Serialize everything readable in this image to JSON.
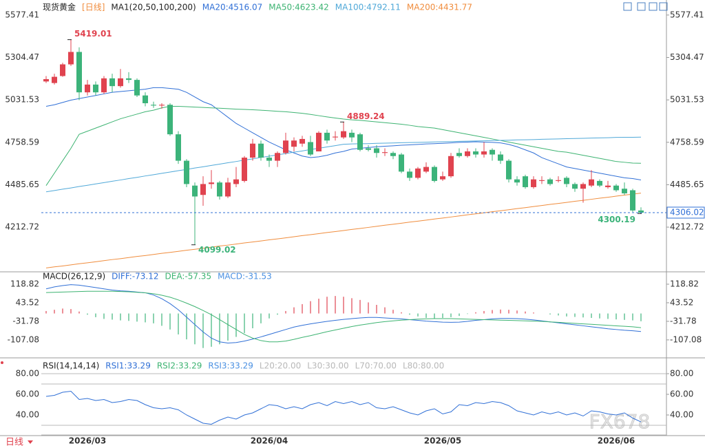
{
  "ui": {
    "period_button": "日线",
    "watermark": "FX678"
  },
  "chart_data": [
    {
      "type": "candlestick",
      "title": "现货黄金",
      "period": "[日线]",
      "period_color": "#f08c3c",
      "indicator": "MA1(20,50,100,200)",
      "up_color": "#e0434f",
      "down_color": "#3cb37a",
      "ylim": [
        3934,
        5652
      ],
      "yticks": [
        5577.41,
        5304.47,
        5031.53,
        4758.59,
        4485.65,
        4212.72
      ],
      "categories": [
        null,
        null,
        null,
        null,
        null,
        "2026/03",
        null,
        null,
        null,
        null,
        null,
        null,
        null,
        null,
        null,
        null,
        null,
        null,
        null,
        null,
        null,
        null,
        null,
        null,
        null,
        null,
        null,
        "2026/04",
        null,
        null,
        null,
        null,
        null,
        null,
        null,
        null,
        null,
        null,
        null,
        null,
        null,
        null,
        null,
        null,
        null,
        null,
        null,
        null,
        "2026/05",
        null,
        null,
        null,
        null,
        null,
        null,
        null,
        null,
        null,
        null,
        null,
        null,
        null,
        null,
        null,
        null,
        null,
        null,
        null,
        null,
        "2026/06",
        null,
        null,
        null
      ],
      "open": [
        5150,
        5140,
        5185,
        5260,
        5340,
        5080,
        5130,
        5080,
        5170,
        5120,
        5170,
        5160,
        5060,
        5000,
        4995,
        5000,
        4810,
        4640,
        4480,
        4420,
        4490,
        4500,
        4410,
        4490,
        4510,
        4660,
        4750,
        4660,
        4640,
        4690,
        4730,
        4750,
        4760,
        4700,
        4820,
        4790,
        4790,
        4820,
        4810,
        4720,
        4720,
        4690,
        4690,
        4680,
        4570,
        4530,
        4570,
        4600,
        4520,
        4540,
        4690,
        4670,
        4700,
        4680,
        4710,
        4680,
        4640,
        4520,
        4540,
        4470,
        4510,
        4520,
        4510,
        4530,
        4490,
        4460,
        4480,
        4510,
        4470,
        4480,
        4460,
        4450,
        4320
      ],
      "close": [
        5165,
        5180,
        5260,
        5340,
        5080,
        5130,
        5080,
        5170,
        5120,
        5170,
        5160,
        5060,
        5010,
        4995,
        5000,
        4810,
        4640,
        4490,
        4410,
        4490,
        4500,
        4410,
        4500,
        4520,
        4660,
        4750,
        4660,
        4640,
        4690,
        4770,
        4770,
        4780,
        4680,
        4820,
        4770,
        4795,
        4830,
        4790,
        4710,
        4710,
        4690,
        4695,
        4670,
        4570,
        4530,
        4590,
        4600,
        4510,
        4540,
        4670,
        4670,
        4700,
        4680,
        4700,
        4680,
        4640,
        4520,
        4500,
        4470,
        4520,
        4515,
        4490,
        4515,
        4490,
        4460,
        4490,
        4520,
        4480,
        4480,
        4450,
        4430,
        4320,
        4306.02
      ],
      "high": [
        5185,
        5200,
        5270,
        5419.01,
        5370,
        5160,
        5150,
        5185,
        5200,
        5230,
        5210,
        5170,
        5080,
        5020,
        5010,
        5010,
        4830,
        4650,
        4500,
        4540,
        4580,
        4510,
        4530,
        4600,
        4670,
        4780,
        4770,
        4680,
        4700,
        4820,
        4790,
        4800,
        4800,
        4830,
        4840,
        4830,
        4889.24,
        4840,
        4820,
        4740,
        4740,
        4720,
        4700,
        4690,
        4590,
        4600,
        4630,
        4610,
        4570,
        4690,
        4720,
        4720,
        4720,
        4760,
        4720,
        4700,
        4650,
        4540,
        4550,
        4540,
        4540,
        4530,
        4540,
        4540,
        4500,
        4500,
        4580,
        4520,
        4510,
        4490,
        4500,
        4460,
        4340
      ],
      "low": [
        5140,
        5130,
        5180,
        5250,
        5030,
        5060,
        5060,
        5070,
        5080,
        5110,
        5140,
        5050,
        4990,
        4980,
        4975,
        4800,
        4620,
        4470,
        4099.02,
        4350,
        4460,
        4390,
        4400,
        4470,
        4500,
        4640,
        4640,
        4600,
        4600,
        4680,
        4700,
        4730,
        4670,
        4700,
        4750,
        4770,
        4780,
        4760,
        4700,
        4700,
        4660,
        4670,
        4650,
        4560,
        4510,
        4520,
        4560,
        4500,
        4510,
        4530,
        4660,
        4660,
        4660,
        4660,
        4640,
        4620,
        4500,
        4480,
        4460,
        4460,
        4490,
        4480,
        4500,
        4470,
        4440,
        4370,
        4470,
        4470,
        4460,
        4440,
        4420,
        4310,
        4300.19
      ],
      "series": [
        {
          "name": "MA20:4516.07",
          "color": "#2f6fd6",
          "values": [
            4990,
            5000,
            5015,
            5030,
            5040,
            5050,
            5060,
            5070,
            5080,
            5085,
            5090,
            5095,
            5100,
            5110,
            5110,
            5105,
            5100,
            5080,
            5050,
            5020,
            5000,
            4960,
            4920,
            4880,
            4850,
            4820,
            4790,
            4760,
            4735,
            4710,
            4690,
            4670,
            4660,
            4665,
            4675,
            4690,
            4700,
            4715,
            4720,
            4725,
            4730,
            4733,
            4736,
            4740,
            4742,
            4745,
            4748,
            4750,
            4752,
            4755,
            4758,
            4760,
            4762,
            4760,
            4758,
            4755,
            4745,
            4730,
            4710,
            4690,
            4660,
            4640,
            4620,
            4600,
            4590,
            4580,
            4570,
            4560,
            4550,
            4540,
            4530,
            4525,
            4516.07
          ]
        },
        {
          "name": "MA50:4623.42",
          "color": "#3cb371",
          "values": [
            4480,
            4560,
            4640,
            4720,
            4810,
            4830,
            4850,
            4870,
            4890,
            4910,
            4925,
            4940,
            4955,
            4965,
            4980,
            4990,
            4990,
            4988,
            4985,
            4983,
            4980,
            4978,
            4975,
            4972,
            4970,
            4968,
            4965,
            4962,
            4958,
            4955,
            4950,
            4945,
            4938,
            4930,
            4922,
            4915,
            4908,
            4903,
            4900,
            4895,
            4890,
            4885,
            4880,
            4875,
            4868,
            4860,
            4855,
            4850,
            4840,
            4830,
            4820,
            4810,
            4800,
            4790,
            4780,
            4770,
            4760,
            4750,
            4740,
            4730,
            4720,
            4710,
            4700,
            4695,
            4685,
            4675,
            4665,
            4655,
            4645,
            4635,
            4630,
            4625,
            4623.42
          ]
        },
        {
          "name": "MA100:4792.11",
          "color": "#4fa8d8",
          "values": [
            4440,
            4448,
            4457,
            4465,
            4474,
            4482,
            4491,
            4499,
            4508,
            4516,
            4525,
            4533,
            4542,
            4550,
            4559,
            4567,
            4576,
            4584,
            4593,
            4601,
            4610,
            4618,
            4627,
            4635,
            4644,
            4652,
            4661,
            4669,
            4678,
            4686,
            4695,
            4703,
            4712,
            4720,
            4729,
            4737,
            4746,
            4748,
            4749,
            4750,
            4752,
            4753,
            4754,
            4756,
            4757,
            4758,
            4759,
            4761,
            4762,
            4763,
            4765,
            4766,
            4767,
            4768,
            4770,
            4771,
            4772,
            4774,
            4775,
            4776,
            4778,
            4779,
            4780,
            4782,
            4783,
            4784,
            4786,
            4787,
            4788,
            4790,
            4791,
            4791,
            4792.11
          ]
        },
        {
          "name": "MA200:4431.77",
          "color": "#f08c3c",
          "values": [
            3950,
            3957,
            3963,
            3970,
            3977,
            3983,
            3990,
            3997,
            4004,
            4010,
            4017,
            4024,
            4030,
            4037,
            4044,
            4050,
            4057,
            4064,
            4070,
            4077,
            4084,
            4091,
            4097,
            4104,
            4111,
            4117,
            4124,
            4131,
            4137,
            4144,
            4151,
            4158,
            4164,
            4171,
            4178,
            4184,
            4191,
            4198,
            4204,
            4211,
            4218,
            4225,
            4231,
            4238,
            4245,
            4251,
            4258,
            4265,
            4271,
            4278,
            4285,
            4292,
            4298,
            4305,
            4312,
            4318,
            4325,
            4332,
            4338,
            4345,
            4352,
            4359,
            4365,
            4372,
            4379,
            4385,
            4392,
            4399,
            4405,
            4412,
            4419,
            4425,
            4431.77
          ]
        }
      ]
    },
    {
      "type": "macd",
      "title": "MACD(26,12,9)",
      "ylim": [
        -180,
        169
      ],
      "yticks": [
        118.82,
        43.52,
        -31.78,
        -107.08
      ],
      "histogram": {
        "name": "MACD:-31.53",
        "color": "#4a90e2",
        "up_color": "#e0434f",
        "down_color": "#3cb37a",
        "values": [
          10,
          15,
          20,
          18,
          8,
          -5,
          -15,
          -22,
          -25,
          -28,
          -30,
          -33,
          -36,
          -40,
          -50,
          -65,
          -85,
          -105,
          -125,
          -140,
          -135,
          -125,
          -110,
          -95,
          -80,
          -60,
          -40,
          -20,
          -5,
          10,
          25,
          38,
          50,
          60,
          68,
          71,
          68,
          62,
          55,
          45,
          35,
          25,
          15,
          5,
          -5,
          -12,
          -18,
          -20,
          -18,
          -15,
          -10,
          -2,
          5,
          10,
          14,
          16,
          15,
          12,
          8,
          4,
          0,
          -4,
          -8,
          -12,
          -14,
          -16,
          -18,
          -20,
          -22,
          -24,
          -26,
          -28,
          -31.53
        ]
      },
      "series": [
        {
          "name": "DIFF:-73.12",
          "color": "#2f6fd6",
          "values": [
            100,
            108,
            113,
            117,
            115,
            110,
            105,
            100,
            95,
            92,
            90,
            87,
            84,
            75,
            60,
            40,
            15,
            -15,
            -45,
            -75,
            -100,
            -115,
            -120,
            -118,
            -112,
            -104,
            -95,
            -85,
            -75,
            -65,
            -55,
            -48,
            -42,
            -37,
            -32,
            -28,
            -24,
            -21,
            -18,
            -16,
            -16,
            -18,
            -20,
            -22,
            -25,
            -28,
            -31,
            -33,
            -35,
            -36,
            -35,
            -32,
            -28,
            -25,
            -22,
            -20,
            -20,
            -21,
            -23,
            -26,
            -30,
            -34,
            -38,
            -42,
            -46,
            -50,
            -54,
            -58,
            -62,
            -65,
            -68,
            -70,
            -73.12
          ]
        },
        {
          "name": "DEA:-57.35",
          "color": "#3cb371",
          "values": [
            85,
            86,
            87,
            88,
            89,
            90,
            90,
            90,
            90,
            89,
            88,
            86,
            84,
            80,
            74,
            66,
            55,
            42,
            28,
            12,
            -5,
            -25,
            -45,
            -65,
            -85,
            -100,
            -110,
            -115,
            -115,
            -112,
            -105,
            -97,
            -90,
            -82,
            -74,
            -67,
            -60,
            -53,
            -47,
            -42,
            -37,
            -33,
            -30,
            -27,
            -25,
            -23,
            -22,
            -21,
            -21,
            -21,
            -22,
            -23,
            -24,
            -25,
            -26,
            -27,
            -28,
            -29,
            -30,
            -31,
            -32,
            -34,
            -36,
            -38,
            -40,
            -42,
            -44,
            -46,
            -48,
            -50,
            -52,
            -54,
            -57.35
          ]
        }
      ]
    },
    {
      "type": "line",
      "title": "RSI(14,14,14)",
      "ylim": [
        20,
        92
      ],
      "yticks": [
        {
          "value": 80,
          "label": "80.00"
        },
        {
          "value": 60,
          "label": "60.00"
        },
        {
          "value": 40,
          "label": "40.00"
        }
      ],
      "series": [
        {
          "name": "RSI1:33.29",
          "color": "#2f6fd6",
          "values": [
            58,
            59,
            62,
            63,
            55,
            56,
            54,
            55,
            52,
            53,
            55,
            54,
            50,
            47,
            46,
            47,
            45,
            40,
            36,
            32,
            31,
            35,
            38,
            36,
            40,
            42,
            46,
            50,
            49,
            46,
            48,
            46,
            50,
            52,
            49,
            53,
            51,
            53,
            50,
            52,
            47,
            46,
            48,
            45,
            42,
            40,
            44,
            46,
            41,
            43,
            50,
            49,
            52,
            51,
            53,
            52,
            49,
            44,
            42,
            40,
            43,
            41,
            43,
            40,
            42,
            39,
            44,
            43,
            41,
            40,
            42,
            37,
            33.29
          ]
        }
      ],
      "legend_extra": [
        {
          "name": "RSI2:33.29",
          "color": "#3cb371"
        },
        {
          "name": "RSI3:33.29",
          "color": "#4a90e2"
        }
      ],
      "ref_lines": [
        {
          "value": 20,
          "label": "L20:20.00"
        },
        {
          "value": 30,
          "label": "L30:30.00"
        },
        {
          "value": 70,
          "label": "L70:70.00"
        },
        {
          "value": 80,
          "label": "L80:80.00"
        }
      ],
      "ref_color": "#b8b8b8"
    }
  ]
}
